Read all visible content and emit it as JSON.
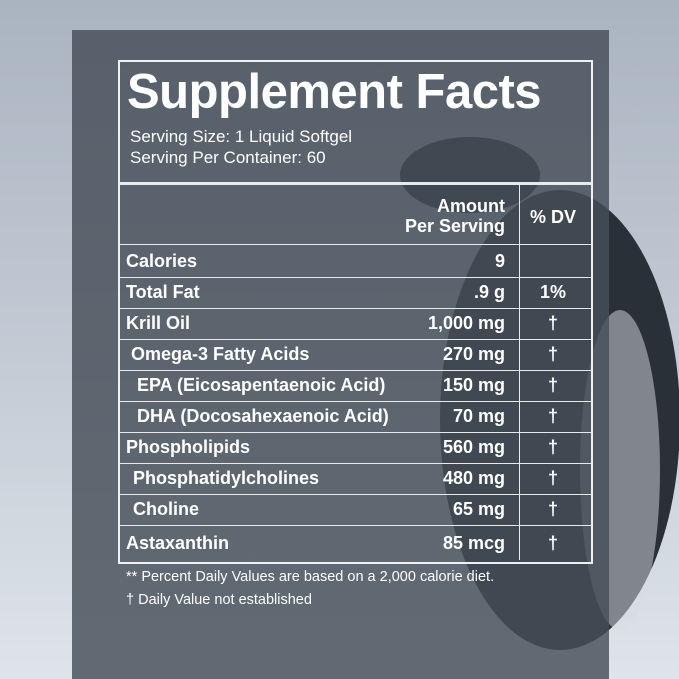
{
  "label": {
    "title": "Supplement Facts",
    "serving_size": "Serving Size: 1 Liquid Softgel",
    "servings_per_container": "Serving Per Container: 60",
    "header": {
      "amount_line1": "Amount",
      "amount_line2": "Per Serving",
      "dv": "% DV"
    },
    "rows": [
      {
        "name": "Calories",
        "amount": "9",
        "dv": ""
      },
      {
        "name": "Total Fat",
        "amount": ".9 g",
        "dv": "1%"
      },
      {
        "name": "Krill Oil",
        "amount": "1,000 mg",
        "dv": "†"
      },
      {
        "name": "Omega-3 Fatty Acids",
        "amount": "270 mg",
        "dv": "†"
      },
      {
        "name": "EPA (Eicosapentaenoic Acid)",
        "amount": "150 mg",
        "dv": "†"
      },
      {
        "name": "DHA (Docosahexaenoic Acid)",
        "amount": "70 mg",
        "dv": "†"
      },
      {
        "name": "Phospholipids",
        "amount": "560 mg",
        "dv": "†"
      },
      {
        "name": "Phosphatidylcholines",
        "amount": "480 mg",
        "dv": "†"
      },
      {
        "name": "Choline",
        "amount": "65 mg",
        "dv": "†"
      },
      {
        "name": "Astaxanthin",
        "amount": "85 mcg",
        "dv": "†"
      }
    ],
    "footnotes": [
      "** Percent Daily Values are based on a 2,000 calorie diet.",
      "†  Daily Value not established"
    ]
  }
}
